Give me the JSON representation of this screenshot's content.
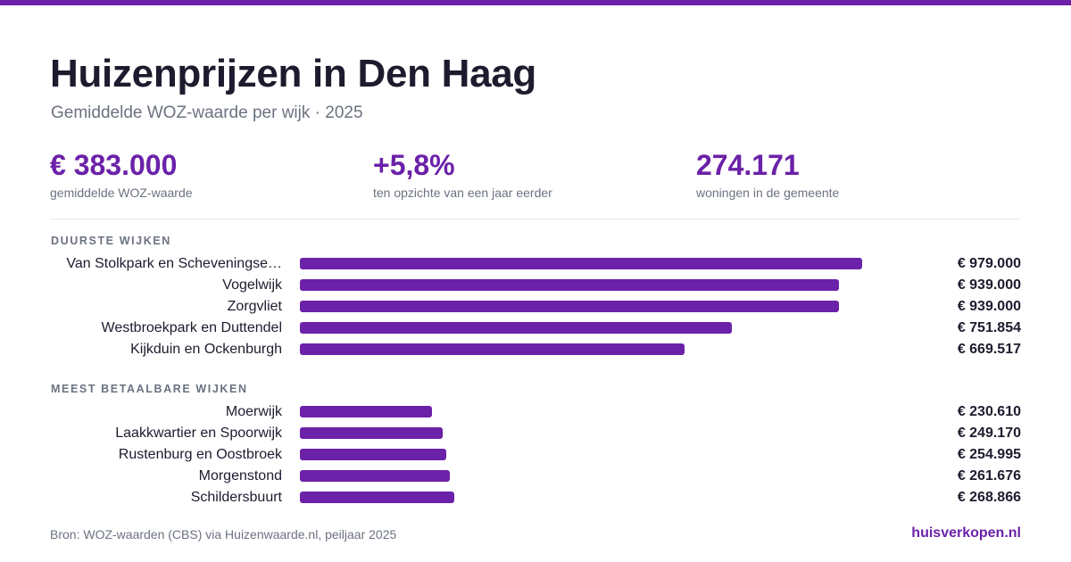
{
  "header": {
    "title": "Huizenprijzen in Den Haag",
    "subtitle": "Gemiddelde WOZ-waarde per wijk · 2025"
  },
  "stats": [
    {
      "value": "€ 383.000",
      "label": "gemiddelde WOZ-waarde"
    },
    {
      "value": "+5,8%",
      "label": "ten opzichte van een jaar eerder"
    },
    {
      "value": "274.171",
      "label": "woningen in de gemeente"
    }
  ],
  "colors": {
    "accent": "#6b21a8",
    "text": "#1e1b2e",
    "muted": "#6b7280"
  },
  "chart_data": [
    {
      "type": "bar",
      "orientation": "horizontal",
      "title": "DUURSTE WIJKEN",
      "categories": [
        "Van Stolkpark en Scheveningse…",
        "Vogelwijk",
        "Zorgvliet",
        "Westbroekpark en Duttendel",
        "Kijkduin en Ockenburgh"
      ],
      "values": [
        979000,
        939000,
        939000,
        751854,
        669517
      ],
      "value_labels": [
        "€ 979.000",
        "€ 939.000",
        "€ 939.000",
        "€ 751.854",
        "€ 669.517"
      ],
      "xlim": [
        0,
        979000
      ]
    },
    {
      "type": "bar",
      "orientation": "horizontal",
      "title": "MEEST BETAALBARE WIJKEN",
      "categories": [
        "Moerwijk",
        "Laakkwartier en Spoorwijk",
        "Rustenburg en Oostbroek",
        "Morgenstond",
        "Schildersbuurt"
      ],
      "values": [
        230610,
        249170,
        254995,
        261676,
        268866
      ],
      "value_labels": [
        "€ 230.610",
        "€ 249.170",
        "€ 254.995",
        "€ 261.676",
        "€ 268.866"
      ],
      "xlim": [
        0,
        979000
      ]
    }
  ],
  "footer": {
    "source": "Bron: WOZ-waarden (CBS) via Huizenwaarde.nl, peiljaar 2025",
    "brand": "huisverkopen.nl"
  }
}
